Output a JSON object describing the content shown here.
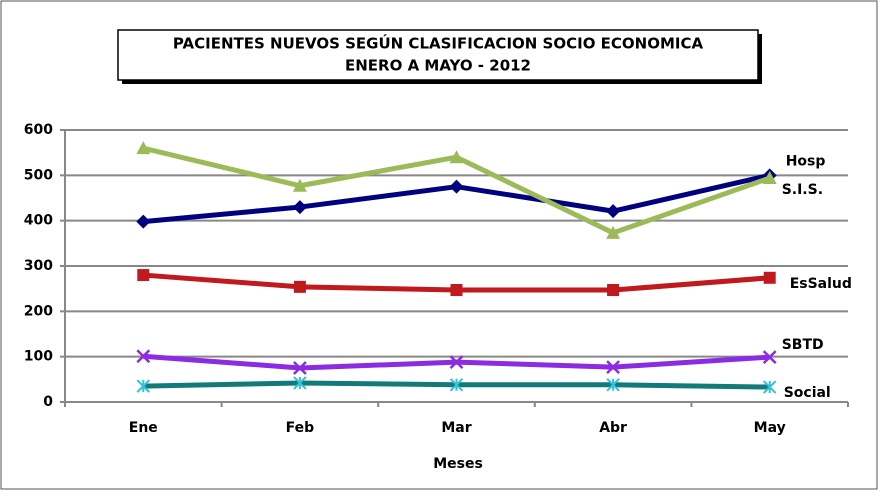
{
  "chart_data": {
    "type": "line",
    "title": "PACIENTES NUEVOS SEGÚN CLASIFICACION  SOCIO ECONOMICA",
    "subtitle": "ENERO A MAYO  -  2012",
    "x_label": "Meses",
    "categories": [
      "Ene",
      "Feb",
      "Mar",
      "Abr",
      "May"
    ],
    "series": [
      {
        "name": "Hosp",
        "color": "#000080",
        "marker": "diamond",
        "values": [
          398,
          430,
          475,
          421,
          500
        ]
      },
      {
        "name": "S.I.S.",
        "color": "#9bbb59",
        "marker": "triangle",
        "values": [
          560,
          477,
          540,
          373,
          494
        ]
      },
      {
        "name": "EsSalud",
        "color": "#c0191e",
        "marker": "square",
        "values": [
          280,
          254,
          247,
          247,
          274
        ]
      },
      {
        "name": "SBTD",
        "color": "#8b2be2",
        "marker": "x",
        "values": [
          101,
          75,
          88,
          77,
          99
        ]
      },
      {
        "name": "Social",
        "color": "#127a7a",
        "marker": "asterisk",
        "values": [
          35,
          42,
          38,
          38,
          33
        ]
      }
    ],
    "ylim": [
      0,
      600
    ],
    "yticks": [
      0,
      100,
      200,
      300,
      400,
      500,
      600
    ],
    "grid": true
  }
}
